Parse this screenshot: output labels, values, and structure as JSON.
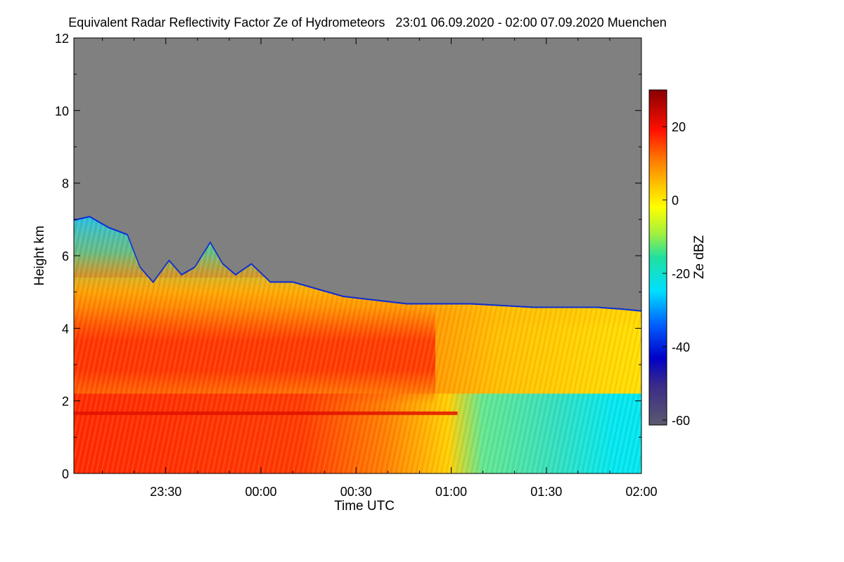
{
  "chart_data": {
    "type": "heatmap",
    "title": "Equivalent Radar Reflectivity Factor Ze of Hydrometeors   23:01 06.09.2020 - 02:00 07.09.2020 Muenchen",
    "xlabel": "Time UTC",
    "ylabel": "Height km",
    "x_range_minutes": [
      -59,
      120
    ],
    "x_ticks": [
      {
        "label": "23:30",
        "minutes": -30
      },
      {
        "label": "00:00",
        "minutes": 0
      },
      {
        "label": "00:30",
        "minutes": 30
      },
      {
        "label": "01:00",
        "minutes": 60
      },
      {
        "label": "01:30",
        "minutes": 90
      },
      {
        "label": "02:00",
        "minutes": 120
      }
    ],
    "y_range_km": [
      0,
      12
    ],
    "y_ticks": [
      0,
      2,
      4,
      6,
      8,
      10,
      12
    ],
    "colorbar": {
      "label": "Ze dBZ",
      "range": [
        -60,
        30
      ],
      "ticks": [
        -60,
        -40,
        -20,
        0,
        20
      ]
    },
    "no_signal_color": "#808080",
    "echo_top_km": [
      {
        "t": -59,
        "top": 7.0
      },
      {
        "t": -54,
        "top": 7.1
      },
      {
        "t": -48,
        "top": 6.8
      },
      {
        "t": -42,
        "top": 6.6
      },
      {
        "t": -38,
        "top": 5.7
      },
      {
        "t": -34,
        "top": 5.3
      },
      {
        "t": -29,
        "top": 5.9
      },
      {
        "t": -25,
        "top": 5.5
      },
      {
        "t": -21,
        "top": 5.7
      },
      {
        "t": -16,
        "top": 6.4
      },
      {
        "t": -12,
        "top": 5.8
      },
      {
        "t": -8,
        "top": 5.5
      },
      {
        "t": -3,
        "top": 5.8
      },
      {
        "t": 3,
        "top": 5.3
      },
      {
        "t": 10,
        "top": 5.3
      },
      {
        "t": 18,
        "top": 5.1
      },
      {
        "t": 26,
        "top": 4.9
      },
      {
        "t": 36,
        "top": 4.8
      },
      {
        "t": 46,
        "top": 4.7
      },
      {
        "t": 56,
        "top": 4.7
      },
      {
        "t": 66,
        "top": 4.7
      },
      {
        "t": 76,
        "top": 4.65
      },
      {
        "t": 86,
        "top": 4.6
      },
      {
        "t": 96,
        "top": 4.6
      },
      {
        "t": 106,
        "top": 4.6
      },
      {
        "t": 114,
        "top": 4.55
      },
      {
        "t": 120,
        "top": 4.5
      }
    ],
    "melting_layer_km": 1.65
  }
}
